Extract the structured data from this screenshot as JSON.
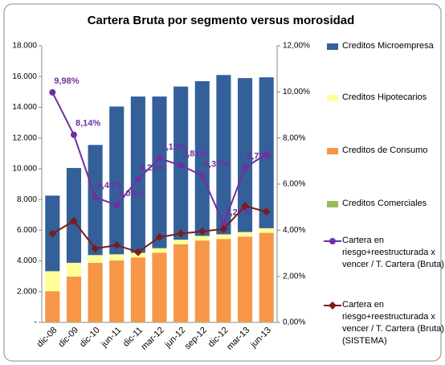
{
  "chart_data": {
    "type": "bar",
    "title": "Cartera Bruta por segmento versus morosidad",
    "categories": [
      "dic-08",
      "dic-09",
      "dic-10",
      "jun-11",
      "dic-11",
      "mar-12",
      "jun-12",
      "sep-12",
      "dic-12",
      "mar-13",
      "jun-13"
    ],
    "series": [
      {
        "name": "Creditos Microempresa",
        "type": "bar",
        "color": "#34609a",
        "values": [
          4920,
          6170,
          7170,
          9620,
          10170,
          9870,
          9970,
          10070,
          10370,
          10020,
          9820
        ]
      },
      {
        "name": "Creditos Hipotecarios",
        "type": "bar",
        "color": "#ffff99",
        "values": [
          1300,
          900,
          500,
          400,
          300,
          300,
          300,
          300,
          300,
          300,
          300
        ]
      },
      {
        "name": "Creditos de Consumo",
        "type": "bar",
        "color": "#f79646",
        "values": [
          2000,
          2950,
          3850,
          4000,
          4200,
          4500,
          5050,
          5300,
          5400,
          5550,
          5800
        ]
      },
      {
        "name": "Creditos Comerciales",
        "type": "bar",
        "color": "#9bbb59",
        "values": [
          30,
          30,
          30,
          30,
          30,
          30,
          30,
          30,
          30,
          30,
          30
        ]
      },
      {
        "name": "Cartera en riesgo+reestructurada x vencer / T. Cartera (Bruta)",
        "type": "line",
        "axis": "y2",
        "marker": "circle",
        "color": "#7030a0",
        "values": [
          9.98,
          8.14,
          5.43,
          5.09,
          6.21,
          7.12,
          6.81,
          6.37,
          4.27,
          6.72,
          7.3
        ],
        "value_labels": [
          "9,98%",
          "8,14%",
          "5,43%",
          "5,09%",
          "6,21%",
          "7,12%",
          "6,81%",
          "6,37%",
          "4,27%",
          "6,72%",
          null
        ]
      },
      {
        "name": "Cartera en riesgo+reestructurada x vencer / T. Cartera (Bruta) (SISTEMA)",
        "type": "line",
        "axis": "y2",
        "marker": "diamond",
        "color": "#7b1c1c",
        "values": [
          3.85,
          4.4,
          3.2,
          3.35,
          3.05,
          3.7,
          3.85,
          3.95,
          4.05,
          5.05,
          4.8
        ]
      }
    ],
    "ylim": [
      0,
      18000
    ],
    "yticks": [
      {
        "value": 0,
        "label": "-"
      },
      {
        "value": 2000,
        "label": "2.000"
      },
      {
        "value": 4000,
        "label": "4.000"
      },
      {
        "value": 6000,
        "label": "6.000"
      },
      {
        "value": 8000,
        "label": "8.000"
      },
      {
        "value": 10000,
        "label": "10.000"
      },
      {
        "value": 12000,
        "label": "12.000"
      },
      {
        "value": 14000,
        "label": "14.000"
      },
      {
        "value": 16000,
        "label": "16.000"
      },
      {
        "value": 18000,
        "label": "18.000"
      }
    ],
    "y2lim": [
      0,
      12
    ],
    "y2ticks": [
      {
        "value": 0,
        "label": "0,00%"
      },
      {
        "value": 2,
        "label": "2,00%"
      },
      {
        "value": 4,
        "label": "4,00%"
      },
      {
        "value": 6,
        "label": "6,00%"
      },
      {
        "value": 8,
        "label": "8,00%"
      },
      {
        "value": 10,
        "label": "10,00%"
      },
      {
        "value": 12,
        "label": "12,00%"
      }
    ],
    "legend": "right"
  }
}
